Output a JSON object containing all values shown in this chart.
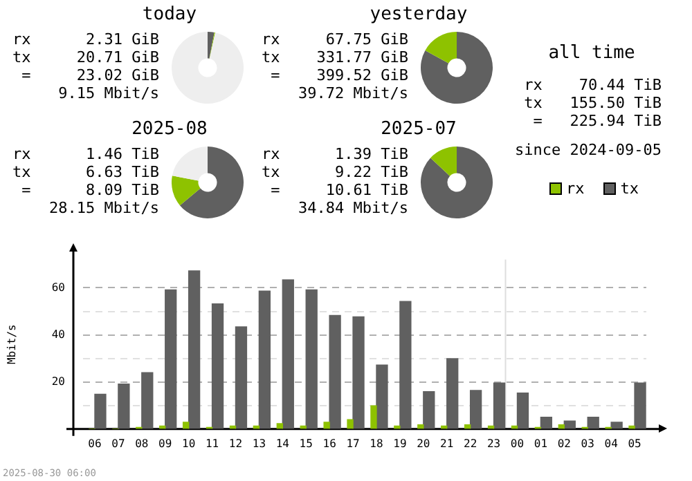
{
  "chart_data": [
    {
      "type": "donut",
      "title": "today",
      "categories": [
        null,
        null,
        null
      ],
      "values": [
        3,
        0.4,
        96.6
      ],
      "colors": [
        "#606060",
        "#8ec200",
        "#eeeeee"
      ],
      "annotations": [
        "rx      2.31 GiB",
        "tx     20.71 GiB",
        "=     23.02 GiB",
        "9.15 Mbit/s"
      ]
    },
    {
      "type": "donut",
      "title": "yesterday",
      "categories": [
        null,
        null
      ],
      "values": [
        83,
        17
      ],
      "colors": [
        "#606060",
        "#8ec200"
      ],
      "annotations": [
        "rx     67.75 GiB",
        "tx    331.77 GiB",
        "=    399.52 GiB",
        "39.72 Mbit/s"
      ]
    },
    {
      "type": "donut",
      "title": "2025-08",
      "categories": [
        null,
        null,
        null
      ],
      "values": [
        64,
        14,
        22
      ],
      "colors": [
        "#606060",
        "#8ec200",
        "#eeeeee"
      ],
      "annotations": [
        "rx      1.46 TiB",
        "tx      6.63 TiB",
        "=      8.09 TiB",
        "28.15 Mbit/s"
      ]
    },
    {
      "type": "donut",
      "title": "2025-07",
      "categories": [
        null,
        null
      ],
      "values": [
        87,
        13
      ],
      "colors": [
        "#606060",
        "#8ec200"
      ],
      "annotations": [
        "rx      1.39 TiB",
        "tx      9.22 TiB",
        "=     10.61 TiB",
        "34.84 Mbit/s"
      ]
    },
    {
      "type": "other",
      "title": "all time",
      "annotations": [
        "rx    70.44 TiB",
        "tx   155.50 TiB",
        "=   225.94 TiB",
        "since 2024-09-05"
      ]
    },
    {
      "type": "bar",
      "ylabel": "Mbit/s",
      "categories": [
        "06",
        "07",
        "08",
        "09",
        "10",
        "11",
        "12",
        "13",
        "14",
        "15",
        "16",
        "17",
        "18",
        "19",
        "20",
        "21",
        "22",
        "23",
        "00",
        "01",
        "02",
        "03",
        "04",
        "05"
      ],
      "series": [
        {
          "name": "rx",
          "color": "#8ec200",
          "values": [
            0,
            0,
            0.7,
            1.3,
            2.9,
            0.7,
            1.3,
            1.3,
            2.3,
            1.3,
            2.9,
            4.0,
            9.9,
            1.3,
            1.8,
            1.3,
            1.8,
            1.3,
            1.3,
            0.7,
            1.8,
            0.7,
            0.7,
            1.3
          ]
        },
        {
          "name": "tx",
          "color": "#606060",
          "values": [
            14.8,
            19.1,
            24.0,
            59.1,
            67.2,
            53.2,
            43.4,
            58.6,
            63.4,
            59.1,
            48.3,
            47.7,
            27.2,
            54.2,
            15.9,
            29.9,
            16.4,
            19.6,
            15.3,
            5.0,
            3.4,
            5.0,
            2.9,
            19.6
          ]
        }
      ],
      "ylim": [
        0,
        72
      ],
      "yticks": [
        {
          "value": 0,
          "label": null
        },
        {
          "value": 10,
          "label": null
        },
        20,
        {
          "value": 30,
          "label": null
        },
        40,
        {
          "value": 50,
          "label": null
        },
        60
      ],
      "grid": "y",
      "legend": "top right",
      "ref_lines": [
        {
          "axis": "x",
          "value": "00",
          "color": "#dddddd"
        }
      ],
      "annotations": [
        "2025-08-30 06:00"
      ]
    }
  ]
}
